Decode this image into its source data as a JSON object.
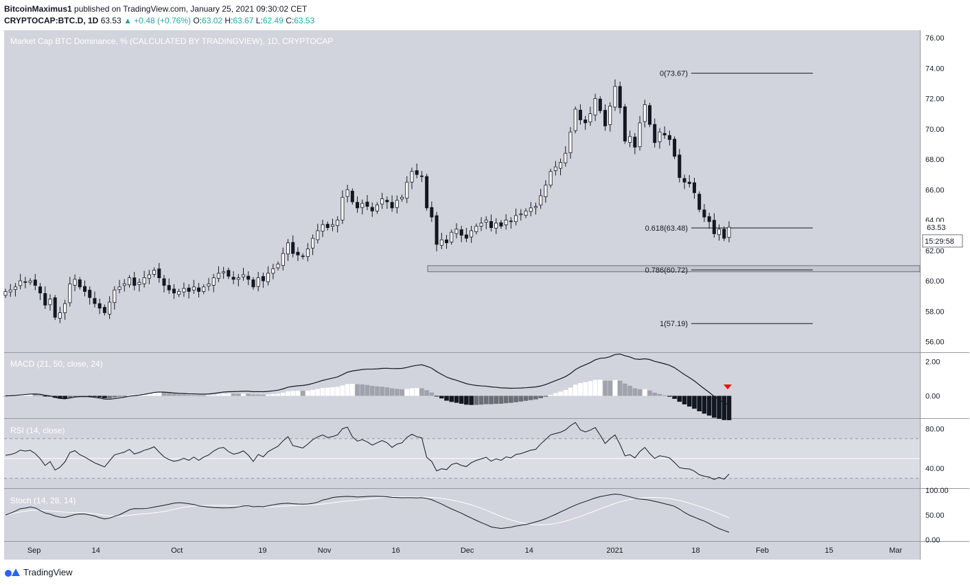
{
  "header": {
    "author": "BitcoinMaximus1",
    "published_text": "published on TradingView.com, January 25, 2021 09:30:02 CET",
    "symbol": "CRYPTOCAP:BTC.D, 1D",
    "last": "63.53",
    "change": "+0.48 (+0.76%)",
    "o_label": "O:",
    "o": "63.02",
    "h_label": "H:",
    "h": "63.67",
    "l_label": "L:",
    "l": "62.49",
    "c_label": "C:",
    "c": "63.53"
  },
  "footer": {
    "brand": "TradingView"
  },
  "colors": {
    "pane_bg": "#d1d4dc",
    "axis_bg": "#ffffff",
    "up_body": "#ffffff",
    "down_body": "#131722",
    "line": "#131722",
    "stoch_signal": "#ffffff",
    "hist_white": "#ffffff",
    "hist_gray": "#a0a3ab",
    "hist_dark_gray": "#6b6e75",
    "hist_black": "#131722",
    "marker": "#ff0000",
    "ohlc_green": "#26a69a"
  },
  "chart_data": {
    "type": "candlestick",
    "title": "Market Cap BTC Dominance, % (CALCULATED BY TRADINGVIEW), 1D, CRYPTOCAP",
    "date_range": [
      "2020-08-26",
      "2021-01-25"
    ],
    "x_ticks": [
      "Sep",
      "14",
      "Oct",
      "19",
      "Nov",
      "16",
      "Dec",
      "14",
      "2021",
      "18",
      "Feb",
      "15",
      "Mar"
    ],
    "y_ticks": [
      "76.00",
      "74.00",
      "72.00",
      "70.00",
      "68.00",
      "66.00",
      "64.00",
      "62.00",
      "60.00",
      "58.00",
      "56.00"
    ],
    "ylim": [
      55.3,
      76.5
    ],
    "closes": [
      59.3,
      59.4,
      59.6,
      60.0,
      59.9,
      60.0,
      59.7,
      59.2,
      58.4,
      58.8,
      57.6,
      57.9,
      58.5,
      59.8,
      60.1,
      59.6,
      59.3,
      58.9,
      58.5,
      58.2,
      57.9,
      58.6,
      59.4,
      59.6,
      59.8,
      60.2,
      59.7,
      59.9,
      60.2,
      60.4,
      60.7,
      60.2,
      59.7,
      59.4,
      59.2,
      59.3,
      59.5,
      59.3,
      59.6,
      59.3,
      59.6,
      59.8,
      60.2,
      60.5,
      60.6,
      60.3,
      60.1,
      60.2,
      60.4,
      60.1,
      59.6,
      60.2,
      60.0,
      60.5,
      60.8,
      61.1,
      61.8,
      62.5,
      61.8,
      61.7,
      61.6,
      62.1,
      62.8,
      63.3,
      63.7,
      63.5,
      63.7,
      64.0,
      65.5,
      66.0,
      65.2,
      64.8,
      65.1,
      64.9,
      64.6,
      65.0,
      65.4,
      65.2,
      64.8,
      65.3,
      65.5,
      66.5,
      67.2,
      67.0,
      66.9,
      64.8,
      64.2,
      62.4,
      62.7,
      62.5,
      63.2,
      63.4,
      63.0,
      62.8,
      63.3,
      63.6,
      63.8,
      64.0,
      63.5,
      63.8,
      63.6,
      64.0,
      63.9,
      64.3,
      64.4,
      64.6,
      64.8,
      64.9,
      65.6,
      66.3,
      67.2,
      67.5,
      67.8,
      68.4,
      69.8,
      71.3,
      70.6,
      70.4,
      71.0,
      72.0,
      71.2,
      70.2,
      71.5,
      72.8,
      71.4,
      69.2,
      69.5,
      68.8,
      70.4,
      71.6,
      70.3,
      69.1,
      69.8,
      69.6,
      69.3,
      68.2,
      66.8,
      66.5,
      66.4,
      65.8,
      64.7,
      64.2,
      63.9,
      63.1,
      63.4,
      62.8,
      63.53
    ],
    "fib_levels": [
      {
        "label": "0(73.67)",
        "value": 73.67
      },
      {
        "label": "0.618(63.48)",
        "value": 63.48
      },
      {
        "label": "0.786(60.72)",
        "value": 60.72
      },
      {
        "label": "1(57.19)",
        "value": 57.19
      }
    ],
    "support_zone": [
      60.6,
      61.0
    ],
    "last_price_label": "63.53",
    "countdown_label": "15:29:58",
    "macd": {
      "title": "MACD (21, 50, close, 24)",
      "y_ticks": [
        "2.00",
        "0.00"
      ],
      "ylim": [
        -1.3,
        2.5
      ]
    },
    "rsi": {
      "title": "RSI (14, close)",
      "y_ticks": [
        "80.00",
        "40.00"
      ],
      "ylim": [
        20,
        90
      ],
      "bands": [
        70,
        50,
        30
      ]
    },
    "stoch": {
      "title": "Stoch (14, 28, 14)",
      "y_ticks": [
        "100.00",
        "50.00",
        "0.00"
      ],
      "ylim": [
        -3,
        103
      ]
    }
  }
}
